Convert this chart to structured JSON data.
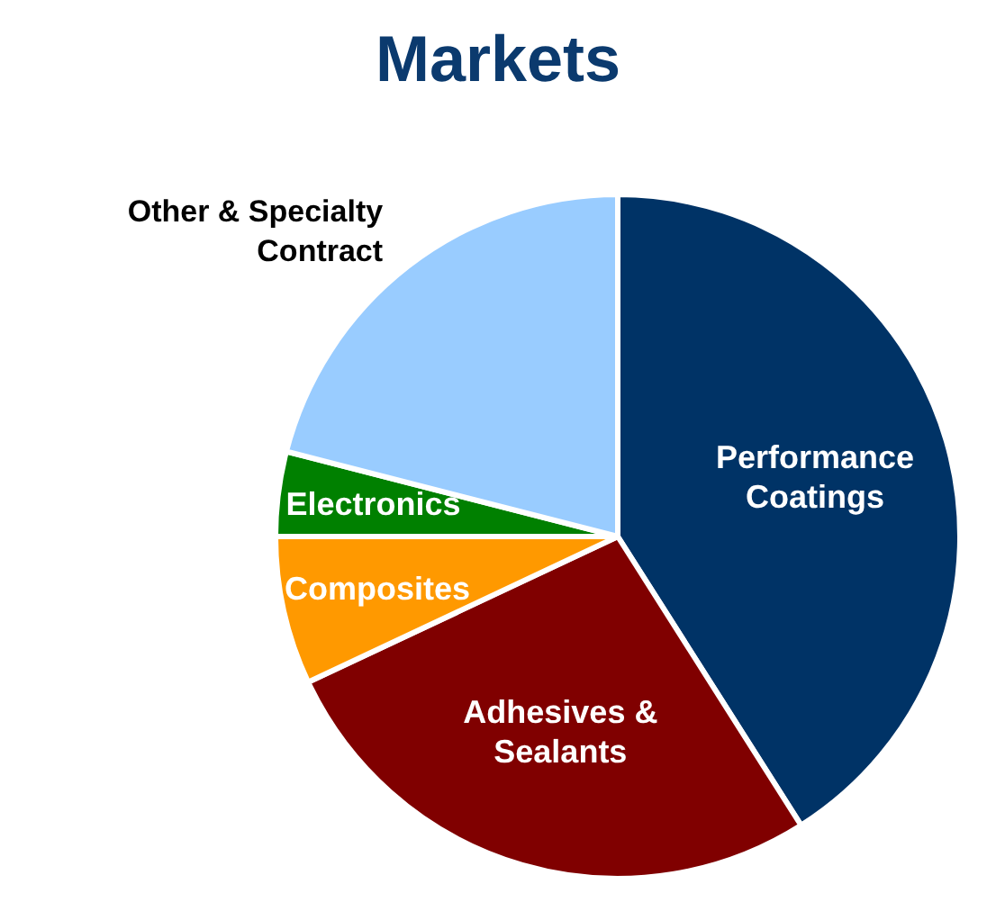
{
  "chart_data": {
    "type": "pie",
    "title": "Markets",
    "categories": [
      "Performance Coatings",
      "Adhesives & Sealants",
      "Composites",
      "Electronics",
      "Other & Specialty Contract"
    ],
    "values": [
      41,
      27,
      7,
      4,
      21
    ],
    "colors": [
      "#003366",
      "#800000",
      "#ff9900",
      "#008000",
      "#99ccff"
    ]
  }
}
